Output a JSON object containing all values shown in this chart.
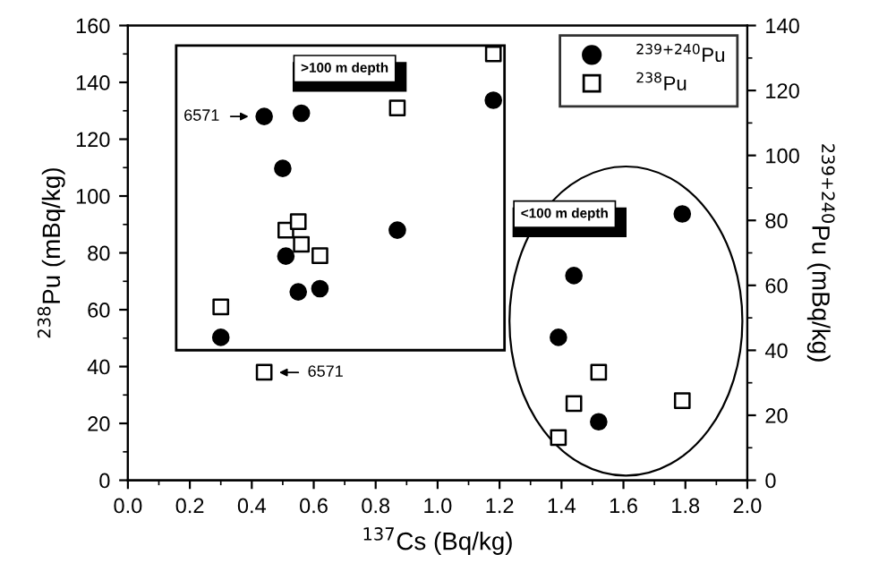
{
  "chart_data": {
    "type": "scatter",
    "xlabel": "$^{137}$Cs (Bq/kg)",
    "ylabel": "$^{238}$Pu (mBq/kg)",
    "y2label": "$^{239+240}$Pu (mBq/kg)",
    "series": [
      {
        "name": "$^{239+240}$Pu",
        "color": "#000000",
        "marker": "circle",
        "axis": "y2",
        "x": [
          0.44,
          0.56,
          0.5,
          0.51,
          0.55,
          0.62,
          0.3,
          0.87,
          1.18,
          1.79,
          1.44,
          1.39,
          1.52
        ],
        "values": [
          112,
          113,
          96,
          69,
          58,
          59,
          44,
          77,
          117,
          82,
          63,
          44,
          18
        ]
      },
      {
        "name": "$^{238}$Pu",
        "color": "#000000",
        "marker": "square",
        "x": [
          1.18,
          0.87,
          0.51,
          0.55,
          0.56,
          0.62,
          0.3,
          0.44,
          1.52,
          1.44,
          1.39,
          1.79
        ],
        "values": [
          150,
          131,
          88,
          91,
          83,
          79,
          61,
          38,
          38,
          27,
          15,
          28
        ]
      }
    ],
    "xlim": [
      0,
      2.0
    ],
    "xticks": [
      {
        "value": 0,
        "label": "0.0"
      },
      0.2,
      0.4,
      0.6,
      0.8,
      {
        "value": 1,
        "label": "1.0"
      },
      1.2,
      1.4,
      1.6,
      1.8,
      {
        "value": 2,
        "label": "2.0"
      }
    ],
    "ylim": [
      0,
      160
    ],
    "yticks": [
      0,
      20,
      40,
      60,
      80,
      100,
      120,
      140,
      160
    ],
    "y2lim": [
      0,
      140
    ],
    "y2ticks": [
      0,
      20,
      40,
      60,
      80,
      100,
      120,
      140
    ],
    "annotations": [
      ">100 m depth",
      "<100 m depth",
      "6571",
      "6571"
    ],
    "legend": "top right",
    "grid": false
  }
}
